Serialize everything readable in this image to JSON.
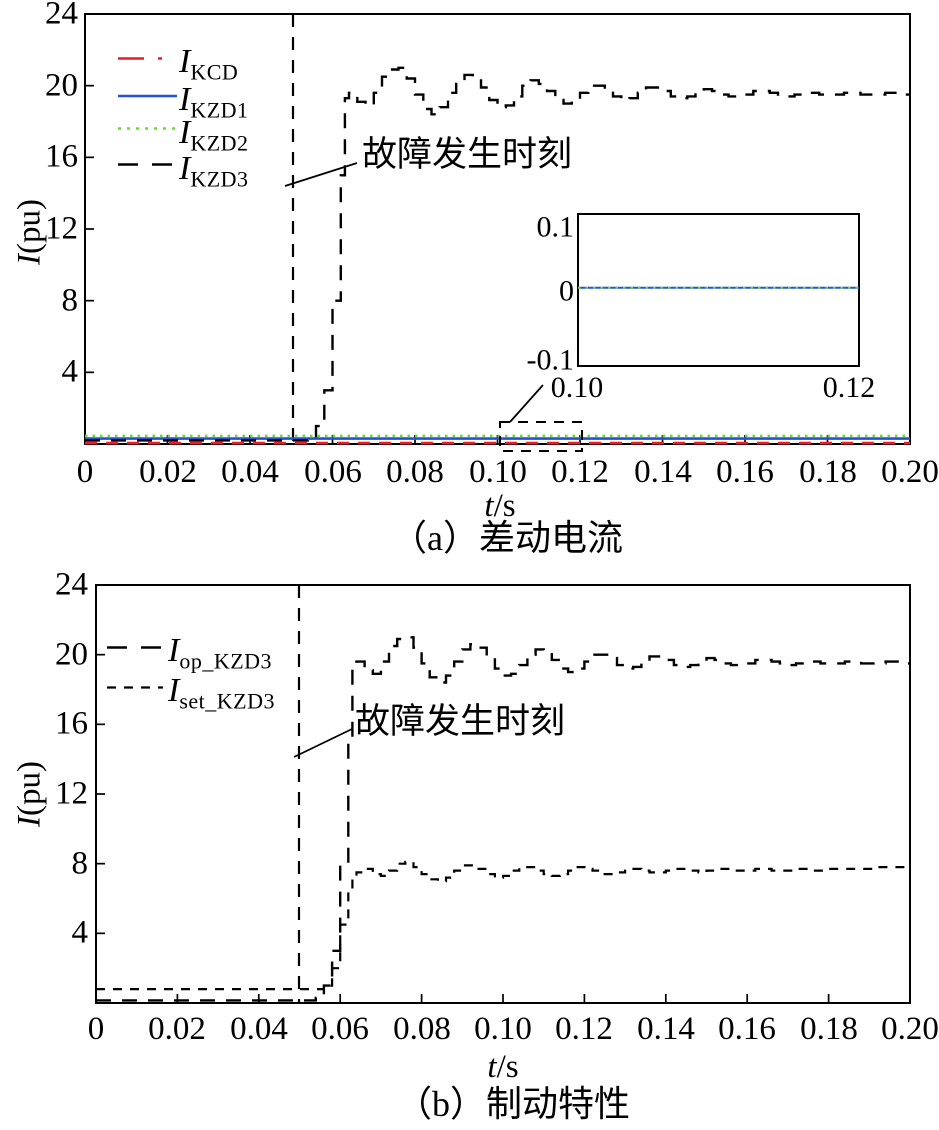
{
  "plot_a": {
    "ylabel_italic": "I",
    "ylabel_rest": "(pu)",
    "xlabel_italic": "t",
    "xlabel_rest": "/s",
    "caption": "（a）差动电流",
    "annotation": "故障发生时刻",
    "x_ticks": [
      "0",
      "0.02",
      "0.04",
      "0.06",
      "0.08",
      "0.10",
      "0.12",
      "0.14",
      "0.16",
      "0.18",
      "0.20"
    ],
    "y_ticks": [
      "24",
      "20",
      "16",
      "12",
      "8",
      "4"
    ],
    "legend": [
      {
        "symbol": "I",
        "sub": "KCD"
      },
      {
        "symbol": "I",
        "sub": "KZD1"
      },
      {
        "symbol": "I",
        "sub": "KZD2"
      },
      {
        "symbol": "I",
        "sub": "KZD3"
      }
    ],
    "inset": {
      "y_ticks": [
        "0.1",
        "0",
        "-0.1"
      ],
      "x_ticks": [
        "0.10",
        "0.12"
      ]
    }
  },
  "plot_b": {
    "ylabel_italic": "I",
    "ylabel_rest": "(pu)",
    "xlabel_italic": "t",
    "xlabel_rest": "/s",
    "caption": "（b）制动特性",
    "annotation": "故障发生时刻",
    "x_ticks": [
      "0",
      "0.02",
      "0.04",
      "0.06",
      "0.08",
      "0.10",
      "0.12",
      "0.14",
      "0.16",
      "0.18",
      "0.20"
    ],
    "y_ticks": [
      "24",
      "20",
      "16",
      "12",
      "8",
      "4"
    ],
    "legend": [
      {
        "symbol": "I",
        "sub": "op_KZD3"
      },
      {
        "symbol": "I",
        "sub": "set_KZD3"
      }
    ]
  },
  "chart_data": [
    {
      "type": "line",
      "title": "（a）差动电流",
      "xlabel": "t/s",
      "ylabel": "I(pu)",
      "xlim": [
        0,
        0.2
      ],
      "ylim": [
        0,
        24
      ],
      "x_tick_values": [
        0,
        0.02,
        0.04,
        0.06,
        0.08,
        0.1,
        0.12,
        0.14,
        0.16,
        0.18,
        0.2
      ],
      "y_tick_values": [
        0,
        4,
        8,
        12,
        16,
        20,
        24
      ],
      "grid": false,
      "legend_position": "top-left",
      "fault_time": 0.05,
      "annotation_text": "故障发生时刻",
      "series": [
        {
          "name": "I_KCD",
          "color": "#ed1c24",
          "line": "dash",
          "width": 2.6,
          "head": [
            [
              0,
              0.05
            ],
            [
              0.2,
              0.05
            ]
          ]
        },
        {
          "name": "I_KZD1",
          "color": "#2450e0",
          "line": "solid",
          "width": 2.6,
          "head": [
            [
              0,
              0.3
            ],
            [
              0.2,
              0.3
            ]
          ]
        },
        {
          "name": "I_KZD2",
          "color": "#6cd92e",
          "line": "dot",
          "width": 2.6,
          "head": [
            [
              0,
              0.45
            ],
            [
              0.2,
              0.45
            ]
          ]
        },
        {
          "name": "I_KZD3",
          "color": "#000000",
          "line": "longdash",
          "width": 2.4,
          "step": true,
          "head": [
            [
              0,
              0.2
            ],
            [
              0.05,
              0.2
            ],
            [
              0.054,
              0.3
            ],
            [
              0.056,
              1
            ],
            [
              0.058,
              3
            ],
            [
              0.06,
              8
            ],
            [
              0.062,
              15
            ],
            [
              0.063,
              19.3
            ]
          ],
          "tail": {
            "t0": 0.064,
            "dt": 0.002,
            "y": [
              19.6,
              19.1,
              18.9,
              19.6,
              20.5,
              20.9,
              21.0,
              20.4,
              19.5,
              18.7,
              18.4,
              18.8,
              19.6,
              20.3,
              20.6,
              20.4,
              19.9,
              19.2,
              18.8,
              18.9,
              19.4,
              20.0,
              20.3,
              20.1,
              19.7,
              19.2,
              19.0,
              19.2,
              19.6,
              20.0,
              20.0,
              19.8,
              19.4,
              19.2,
              19.3,
              19.6,
              19.9,
              19.9,
              19.7,
              19.4,
              19.3,
              19.4,
              19.6,
              19.8,
              19.7,
              19.5,
              19.4,
              19.4,
              19.5,
              19.7,
              19.7,
              19.6,
              19.5,
              19.4,
              19.5,
              19.6,
              19.6,
              19.5,
              19.5,
              19.5,
              19.6,
              19.6,
              19.5,
              19.5,
              19.5,
              19.6,
              19.6,
              19.5,
              19.5
            ]
          }
        }
      ],
      "inset": {
        "xlim": [
          0.1,
          0.12
        ],
        "ylim": [
          -0.1,
          0.1
        ],
        "series": [
          {
            "name": "I_KZD1",
            "color": "#2450e0",
            "line": "solid",
            "width": 2,
            "head": [
              [
                0.1,
                0.003
              ],
              [
                0.12,
                0.003
              ]
            ]
          },
          {
            "name": "I_KZD2",
            "color": "#6cd92e",
            "line": "dot",
            "width": 2,
            "head": [
              [
                0.1,
                0.003
              ],
              [
                0.12,
                0.003
              ]
            ]
          }
        ]
      }
    },
    {
      "type": "line",
      "title": "（b）制动特性",
      "xlabel": "t/s",
      "ylabel": "I(pu)",
      "xlim": [
        0,
        0.2
      ],
      "ylim": [
        0,
        24
      ],
      "x_tick_values": [
        0,
        0.02,
        0.04,
        0.06,
        0.08,
        0.1,
        0.12,
        0.14,
        0.16,
        0.18,
        0.2
      ],
      "y_tick_values": [
        0,
        4,
        8,
        12,
        16,
        20,
        24
      ],
      "grid": false,
      "legend_position": "top-left",
      "fault_time": 0.05,
      "annotation_text": "故障发生时刻",
      "series": [
        {
          "name": "I_op_KZD3",
          "color": "#000000",
          "line": "longdash",
          "width": 2.4,
          "step": true,
          "head": [
            [
              0,
              0.15
            ],
            [
              0.05,
              0.15
            ],
            [
              0.054,
              0.3
            ],
            [
              0.056,
              1
            ],
            [
              0.058,
              3
            ],
            [
              0.06,
              8
            ],
            [
              0.062,
              15
            ],
            [
              0.063,
              19.3
            ]
          ],
          "tail": {
            "t0": 0.064,
            "dt": 0.002,
            "y": [
              19.6,
              19.1,
              18.9,
              19.6,
              20.5,
              20.9,
              21.0,
              20.4,
              19.5,
              18.7,
              18.4,
              18.8,
              19.6,
              20.3,
              20.6,
              20.4,
              19.9,
              19.2,
              18.8,
              18.9,
              19.4,
              20.0,
              20.3,
              20.1,
              19.7,
              19.2,
              19.0,
              19.2,
              19.6,
              20.0,
              20.0,
              19.8,
              19.4,
              19.2,
              19.3,
              19.6,
              19.9,
              19.9,
              19.7,
              19.4,
              19.3,
              19.4,
              19.6,
              19.8,
              19.7,
              19.5,
              19.4,
              19.4,
              19.5,
              19.7,
              19.7,
              19.6,
              19.5,
              19.4,
              19.5,
              19.6,
              19.6,
              19.5,
              19.5,
              19.5,
              19.6,
              19.6,
              19.5,
              19.5,
              19.5,
              19.6,
              19.6,
              19.5,
              19.5
            ]
          }
        },
        {
          "name": "I_set_KZD3",
          "color": "#000000",
          "line": "shortdash",
          "width": 2.2,
          "step": true,
          "head": [
            [
              0,
              0.8
            ],
            [
              0.053,
              0.8
            ],
            [
              0.056,
              1
            ],
            [
              0.058,
              2
            ],
            [
              0.06,
              4.5
            ],
            [
              0.062,
              6.5
            ],
            [
              0.063,
              7.2
            ]
          ],
          "tail": {
            "t0": 0.064,
            "dt": 0.002,
            "y": [
              7.5,
              7.7,
              7.4,
              7.3,
              7.6,
              8.0,
              8.1,
              7.8,
              7.4,
              7.1,
              7.0,
              7.2,
              7.6,
              7.9,
              7.9,
              7.7,
              7.4,
              7.2,
              7.3,
              7.6,
              7.8,
              7.8,
              7.6,
              7.4,
              7.3,
              7.4,
              7.6,
              7.8,
              7.7,
              7.6,
              7.4,
              7.4,
              7.5,
              7.7,
              7.7,
              7.6,
              7.5,
              7.5,
              7.6,
              7.7,
              7.7,
              7.6,
              7.5,
              7.6,
              7.7,
              7.7,
              7.6,
              7.6,
              7.6,
              7.7,
              7.7,
              7.6,
              7.6,
              7.6,
              7.7,
              7.7,
              7.6,
              7.6,
              7.7,
              7.7,
              7.7,
              7.7,
              7.7,
              7.7,
              7.8,
              7.8,
              7.8,
              7.8,
              7.8
            ]
          }
        }
      ]
    }
  ]
}
